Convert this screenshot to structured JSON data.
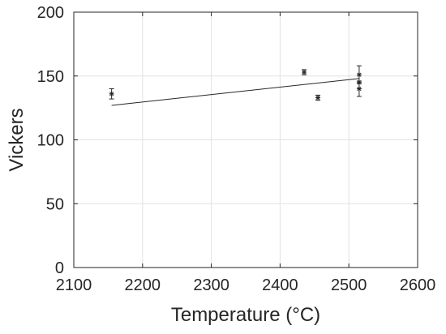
{
  "chart_data": {
    "type": "scatter",
    "xlabel": "Temperature (°C)",
    "ylabel": "Vickers",
    "xlim": [
      2100,
      2600
    ],
    "ylim": [
      0,
      200
    ],
    "x_ticks": [
      2100,
      2200,
      2300,
      2400,
      2500,
      2600
    ],
    "y_ticks": [
      0,
      50,
      100,
      150,
      200
    ],
    "grid": true,
    "series": [
      {
        "points": [
          {
            "x": 2155,
            "y": 136,
            "err": 4
          },
          {
            "x": 2435,
            "y": 153,
            "err": 2
          },
          {
            "x": 2455,
            "y": 133,
            "err": 2
          },
          {
            "x": 2515,
            "y": 151,
            "err": 7
          },
          {
            "x": 2515,
            "y": 145,
            "err": 0
          },
          {
            "x": 2515,
            "y": 140,
            "err": 6
          }
        ]
      }
    ],
    "fit_line": {
      "x": [
        2155,
        2515
      ],
      "y": [
        127,
        148
      ]
    }
  }
}
